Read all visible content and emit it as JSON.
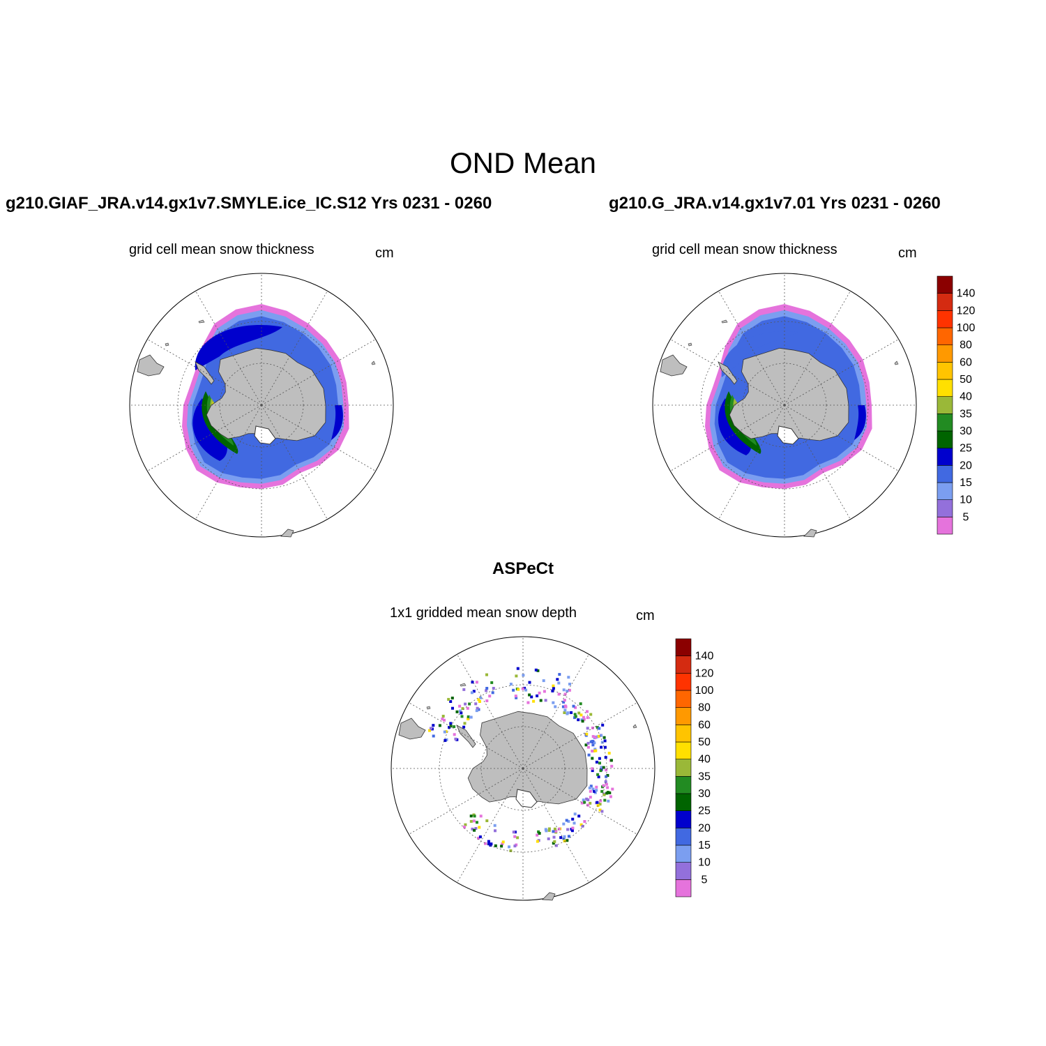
{
  "figure": {
    "title": "OND Mean"
  },
  "panels": [
    {
      "title": "g210.GIAF_JRA.v14.gx1v7.SMYLE.ice_IC.S12  Yrs 0231 - 0260",
      "subtitle": "grid cell mean snow thickness",
      "units": "cm"
    },
    {
      "title": "g210.G_JRA.v14.gx1v7.01  Yrs 0231 - 0260",
      "subtitle": "grid cell mean snow thickness",
      "units": "cm"
    },
    {
      "title": "ASPeCt",
      "subtitle": "1x1 gridded mean snow depth",
      "units": "cm"
    }
  ],
  "colorbar": {
    "labels": [
      "5",
      "10",
      "15",
      "20",
      "25",
      "30",
      "35",
      "40",
      "50",
      "60",
      "80",
      "100",
      "120",
      "140"
    ],
    "colors": [
      "#e573dc",
      "#9370db",
      "#7b9ef0",
      "#4169e1",
      "#0000cd",
      "#006400",
      "#228b22",
      "#9ab838",
      "#ffe000",
      "#ffc400",
      "#ff9900",
      "#ff6600",
      "#ff3300",
      "#d42b11",
      "#8b0000"
    ]
  },
  "map_colors": {
    "land": "#bebebe",
    "ocean": "#ffffff"
  }
}
